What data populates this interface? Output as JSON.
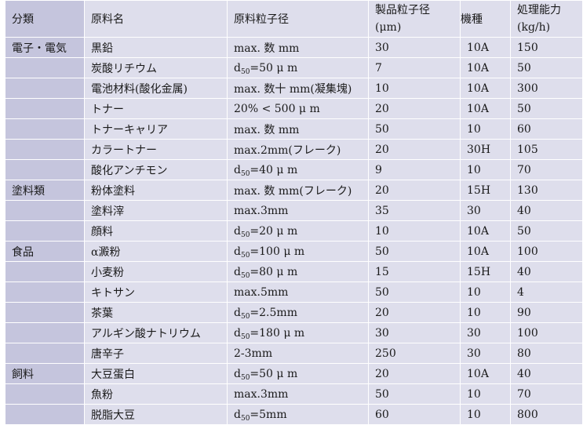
{
  "table": {
    "headers": {
      "category": "分類",
      "material": "原料名",
      "particle_size": "原料粒子径",
      "product_size_line1": "製品粒子径",
      "product_size_line2": "(μm)",
      "machine": "機種",
      "capacity_line1": "処理能力",
      "capacity_line2": "(kg/h)"
    },
    "rows": [
      {
        "category": "電子・電気",
        "material": "黒鉛",
        "size_text": "max. 数 mm",
        "product": "30",
        "machine": "10A",
        "capacity": "150"
      },
      {
        "category": "",
        "material": "炭酸リチウム",
        "size_pre": "d",
        "size_sub": "50",
        "size_post": "=50 μ m",
        "product": "7",
        "machine": "10A",
        "capacity": "50"
      },
      {
        "category": "",
        "material": "電池材料(酸化金属)",
        "size_text": "max. 数十 mm(凝集塊)",
        "product": "10",
        "machine": "10A",
        "capacity": "300"
      },
      {
        "category": "",
        "material": "トナー",
        "size_text": "20% < 500 μ m",
        "product": "20",
        "machine": "10A",
        "capacity": "50"
      },
      {
        "category": "",
        "material": "トナーキャリア",
        "size_text": "max. 数 mm",
        "product": "50",
        "machine": "10",
        "capacity": "60"
      },
      {
        "category": "",
        "material": "カラートナー",
        "size_text": "max.2mm(フレーク)",
        "product": "20",
        "machine": "30H",
        "capacity": "105"
      },
      {
        "category": "",
        "material": "酸化アンチモン",
        "size_pre": "d",
        "size_sub": "50",
        "size_post": "=40 μ m",
        "product": "9",
        "machine": "10",
        "capacity": "70"
      },
      {
        "category": "塗料類",
        "material": "粉体塗料",
        "size_text": "max. 数 mm(フレーク)",
        "product": "20",
        "machine": "15H",
        "capacity": "130"
      },
      {
        "category": "",
        "material": "塗料滓",
        "size_text": "max.3mm",
        "product": "35",
        "machine": "30",
        "capacity": "40"
      },
      {
        "category": "",
        "material": "顔料",
        "size_pre": "d",
        "size_sub": "50",
        "size_post": "=20 μ m",
        "product": "10",
        "machine": "10A",
        "capacity": "50"
      },
      {
        "category": "食品",
        "material": "α澱粉",
        "size_pre": "d",
        "size_sub": "50",
        "size_post": "=100 μ m",
        "product": "50",
        "machine": "10A",
        "capacity": "100"
      },
      {
        "category": "",
        "material": "小麦粉",
        "size_pre": "d",
        "size_sub": "50",
        "size_post": "=80 μ m",
        "product": "15",
        "machine": "15H",
        "capacity": "40"
      },
      {
        "category": "",
        "material": "キトサン",
        "size_text": "max.5mm",
        "product": "50",
        "machine": "10",
        "capacity": "4"
      },
      {
        "category": "",
        "material": "茶葉",
        "size_pre": "d",
        "size_sub": "50",
        "size_post": "=2.5mm",
        "product": "20",
        "machine": "10",
        "capacity": "90"
      },
      {
        "category": "",
        "material": "アルギン酸ナトリウム",
        "size_pre": "d",
        "size_sub": "50",
        "size_post": "=180 μ m",
        "product": "30",
        "machine": "30",
        "capacity": "100"
      },
      {
        "category": "",
        "material": "唐辛子",
        "size_text": "2-3mm",
        "product": "250",
        "machine": "30",
        "capacity": "80"
      },
      {
        "category": "飼料",
        "material": "大豆蛋白",
        "size_pre": "d",
        "size_sub": "50",
        "size_post": "=50 μ m",
        "product": "20",
        "machine": "10A",
        "capacity": "40"
      },
      {
        "category": "",
        "material": "魚粉",
        "size_text": "max.3mm",
        "product": "50",
        "machine": "10",
        "capacity": "70"
      },
      {
        "category": "",
        "material": "脱脂大豆",
        "size_pre": "d",
        "size_sub": "50",
        "size_post": "=5mm",
        "product": "60",
        "machine": "10",
        "capacity": "800"
      }
    ]
  }
}
